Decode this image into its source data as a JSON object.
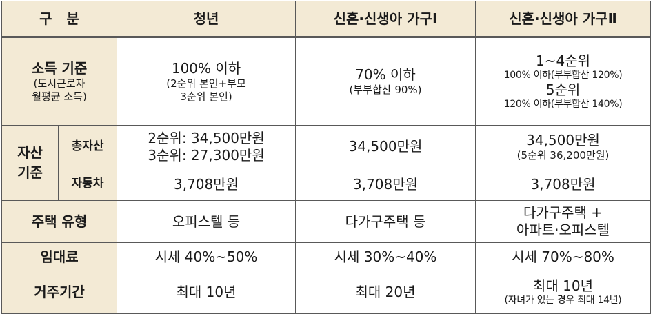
{
  "header": {
    "category": "구   분",
    "youth": "청년",
    "newlywed1": "신혼·신생아 가구Ⅰ",
    "newlywed2": "신혼·신생아 가구Ⅱ"
  },
  "income": {
    "label": "소득 기준",
    "label_sub1": "(도시근로자",
    "label_sub2": "월평균 소득)",
    "youth_main": "100% 이하",
    "youth_sub1": "(2순위 본인+부모",
    "youth_sub2": "3순위 본인)",
    "n1_main": "70% 이하",
    "n1_sub": "(부부합산 90%)",
    "n2_line1": "1~4순위",
    "n2_line2": "100% 이하(부부합산 120%)",
    "n2_line3": "5순위",
    "n2_line4": "120% 이하(부부합산 140%)"
  },
  "asset": {
    "label": "자산 기준",
    "total_label": "총자산",
    "youth_total1": "2순위: 34,500만원",
    "youth_total2": "3순위: 27,300만원",
    "n1_total": "34,500만원",
    "n2_total": "34,500만원",
    "n2_total_sub": "(5순위 36,200만원)",
    "car_label": "자동차",
    "youth_car": "3,708만원",
    "n1_car": "3,708만원",
    "n2_car": "3,708만원"
  },
  "housing": {
    "label": "주택 유형",
    "youth": "오피스텔 등",
    "n1": "다가구주택 등",
    "n2_line1": "다가구주택 +",
    "n2_line2": "아파트·오피스텔"
  },
  "rent": {
    "label": "임대료",
    "youth": "시세 40%~50%",
    "n1": "시세 30%~40%",
    "n2": "시세 70%~80%"
  },
  "period": {
    "label": "거주기간",
    "youth": "최대 10년",
    "n1": "최대 20년",
    "n2": "최대 10년",
    "n2_sub": "(자녀가 있는 경우 최대 14년)"
  }
}
